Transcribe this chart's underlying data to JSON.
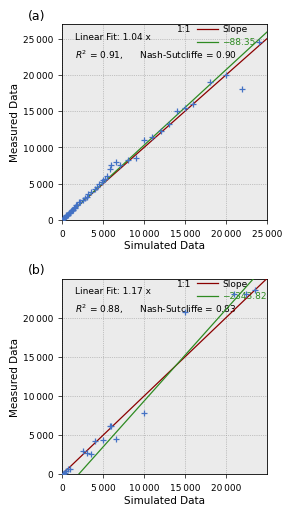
{
  "panel_a": {
    "label": "(a)",
    "scatter_x": [
      50,
      100,
      150,
      200,
      300,
      400,
      500,
      600,
      700,
      800,
      900,
      1000,
      1100,
      1200,
      1300,
      1400,
      1500,
      1600,
      1700,
      1800,
      2000,
      2200,
      2500,
      2800,
      3000,
      3200,
      3500,
      4000,
      4200,
      4500,
      4800,
      5000,
      5200,
      5500,
      5800,
      6000,
      6500,
      7000,
      8000,
      9000,
      10000,
      11000,
      12000,
      13000,
      14000,
      15000,
      16000,
      18000,
      20000,
      22000,
      24000
    ],
    "scatter_y": [
      50,
      100,
      200,
      300,
      400,
      500,
      600,
      700,
      700,
      900,
      1000,
      1100,
      1200,
      1300,
      1400,
      1600,
      1700,
      1800,
      2000,
      2100,
      2400,
      2500,
      2700,
      3000,
      3200,
      3500,
      3800,
      4200,
      4500,
      5000,
      5200,
      5500,
      5700,
      6000,
      7000,
      7500,
      8000,
      7500,
      8200,
      8600,
      11000,
      11500,
      12200,
      13200,
      15000,
      15500,
      16000,
      19000,
      20000,
      18000,
      24500
    ],
    "slope": 1.04,
    "intercept": -88.35,
    "r2": 0.91,
    "ns": 0.9,
    "xlim": [
      0,
      25000
    ],
    "ylim": [
      0,
      27000
    ],
    "xticks": [
      0,
      5000,
      10000,
      15000,
      20000,
      25000
    ],
    "yticks": [
      0,
      5000,
      10000,
      15000,
      20000,
      25000
    ],
    "xlabel": "Simulated Data",
    "ylabel": "Measured Data",
    "ann_text1": "Linear Fit: 1.04 x",
    "ann_text2": "$R^2$ = 0.91,      Nash-Sutcliffe = 0.90",
    "legend_11": "1:1",
    "legend_slope": "Slope",
    "legend_intercept": "−88.35"
  },
  "panel_b": {
    "label": "(b)",
    "scatter_x": [
      100,
      200,
      300,
      500,
      700,
      1000,
      2500,
      3000,
      3500,
      4000,
      5000,
      5800,
      6000,
      6500,
      10000,
      15000,
      21000,
      22500,
      23500
    ],
    "scatter_y": [
      50,
      150,
      200,
      400,
      600,
      700,
      3000,
      2700,
      2600,
      4200,
      4400,
      6100,
      6200,
      4500,
      7800,
      20700,
      23000,
      23000,
      23500
    ],
    "slope": 1.17,
    "intercept": -2343.82,
    "r2": 0.88,
    "ns": 0.83,
    "xlim": [
      0,
      25000
    ],
    "ylim": [
      0,
      25000
    ],
    "xticks": [
      0,
      5000,
      10000,
      15000,
      20000
    ],
    "yticks": [
      0,
      5000,
      10000,
      15000,
      20000
    ],
    "xlabel": "Simulated Data",
    "ylabel": "Measured Data",
    "ann_text1": "Linear Fit: 1.17 x",
    "ann_text2": "$R^2$ = 0.88,      Nash-Sutcliffe = 0.83",
    "legend_11": "1:1",
    "legend_slope": "Slope",
    "legend_intercept": "−2343.82"
  },
  "scatter_color": "#4472C4",
  "line_11_color": "#8B0000",
  "line_slope_color": "#2E8B22",
  "bg_color": "#EBEBEB",
  "annotation_fontsize": 6.5,
  "tick_label_fontsize": 6.5,
  "axis_label_fontsize": 7.5,
  "panel_label_fontsize": 9
}
